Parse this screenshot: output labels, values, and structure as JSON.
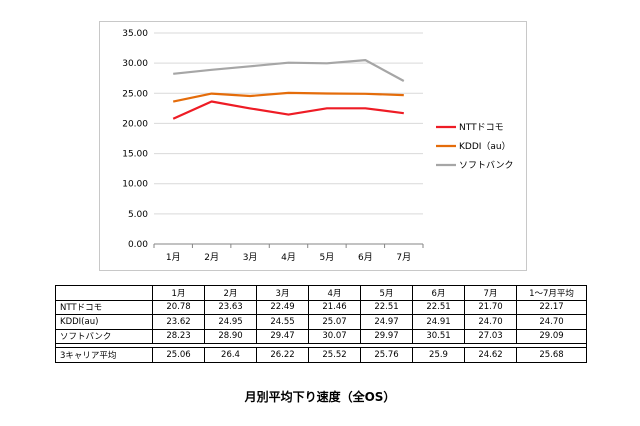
{
  "chart_data": {
    "type": "line",
    "categories": [
      "1月",
      "2月",
      "3月",
      "4月",
      "5月",
      "6月",
      "7月"
    ],
    "series": [
      {
        "name": "NTTドコモ",
        "color": "#ee1c25",
        "values": [
          20.78,
          23.63,
          22.49,
          21.46,
          22.51,
          22.51,
          21.7
        ]
      },
      {
        "name": "KDDI（au）",
        "color": "#e46c0a",
        "values": [
          23.62,
          24.95,
          24.55,
          25.07,
          24.97,
          24.91,
          24.7
        ]
      },
      {
        "name": "ソフトバンク",
        "color": "#a6a6a6",
        "values": [
          28.23,
          28.9,
          29.47,
          30.07,
          29.97,
          30.51,
          27.03
        ]
      }
    ],
    "ylim": [
      0,
      35
    ],
    "yticks": [
      "0.00",
      "5.00",
      "10.00",
      "15.00",
      "20.00",
      "25.00",
      "30.00",
      "35.00"
    ],
    "grid": true,
    "legend_position": "right"
  },
  "table": {
    "headers": [
      "",
      "1月",
      "2月",
      "3月",
      "4月",
      "5月",
      "6月",
      "7月",
      "1～7月平均"
    ],
    "rows": [
      {
        "label": "NTTドコモ",
        "values": [
          "20.78",
          "23.63",
          "22.49",
          "21.46",
          "22.51",
          "22.51",
          "21.70",
          "22.17"
        ]
      },
      {
        "label": "KDDI(au)",
        "values": [
          "23.62",
          "24.95",
          "24.55",
          "25.07",
          "24.97",
          "24.91",
          "24.70",
          "24.70"
        ]
      },
      {
        "label": "ソフトバンク",
        "values": [
          "28.23",
          "28.90",
          "29.47",
          "30.07",
          "29.97",
          "30.51",
          "27.03",
          "29.09"
        ]
      }
    ],
    "summary": {
      "label": "3キャリア平均",
      "values": [
        "25.06",
        "26.4",
        "26.22",
        "25.52",
        "25.76",
        "25.9",
        "24.62",
        "25.68"
      ]
    }
  },
  "caption": "月別平均下り速度（全OS）"
}
